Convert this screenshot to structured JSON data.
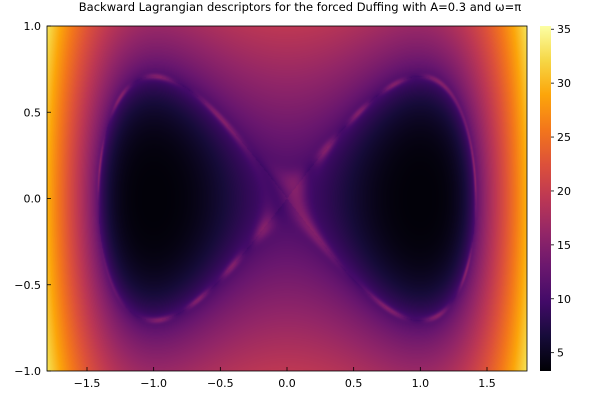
{
  "chart_data": {
    "type": "heatmap",
    "title": "Backward Lagrangian descriptors for the forced Duffing with A=0.3 and ω=π",
    "xlabel": "",
    "ylabel": "",
    "xlim": [
      -1.8,
      1.8
    ],
    "ylim": [
      -1.0,
      1.0
    ],
    "x_ticks": [
      {
        "value": -1.5,
        "label": "−1.5"
      },
      {
        "value": -1.0,
        "label": "−1.0"
      },
      {
        "value": -0.5,
        "label": "−0.5"
      },
      {
        "value": 0.0,
        "label": "0.0"
      },
      {
        "value": 0.5,
        "label": "0.5"
      },
      {
        "value": 1.0,
        "label": "1.0"
      },
      {
        "value": 1.5,
        "label": "1.5"
      }
    ],
    "y_ticks": [
      {
        "value": 1.0,
        "label": "1.0"
      },
      {
        "value": 0.5,
        "label": "0.5"
      },
      {
        "value": 0.0,
        "label": "0.0"
      },
      {
        "value": -0.5,
        "label": "−0.5"
      },
      {
        "value": -1.0,
        "label": "−1.0"
      }
    ],
    "colorbar": {
      "colormap": "inferno",
      "range": [
        3.3,
        35.3
      ],
      "ticks": [
        {
          "value": 5,
          "label": "5"
        },
        {
          "value": 10,
          "label": "10"
        },
        {
          "value": 15,
          "label": "15"
        },
        {
          "value": 20,
          "label": "20"
        },
        {
          "value": 25,
          "label": "25"
        },
        {
          "value": 30,
          "label": "30"
        },
        {
          "value": 35,
          "label": "35"
        }
      ]
    },
    "grid": false,
    "legend": "none",
    "field": {
      "description_values": "Low descriptor values (about 3-5) in the two well interiors centred near (-1, 0) and (1, 0); a thin high-contrast separatrix band tracing a figure-eight shape; values rising to about 30-35 near the outer edges x = ±1.8.",
      "well_centers": [
        [
          -1.0,
          0.0
        ],
        [
          1.0,
          0.0
        ]
      ],
      "min_value": 3.3,
      "max_value": 35.3
    }
  }
}
